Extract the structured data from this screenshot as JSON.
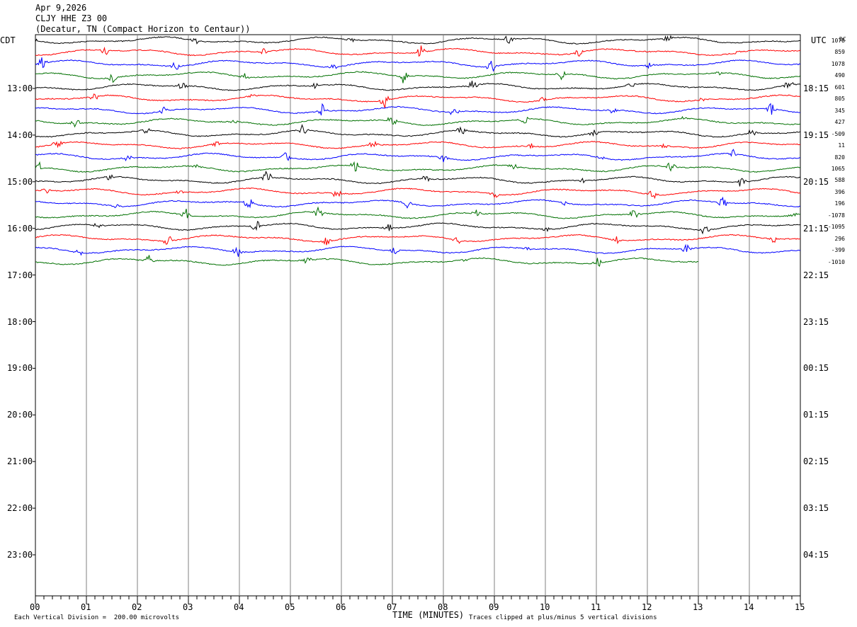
{
  "header": {
    "date": "Apr 9,2026",
    "station": "CLJY HHE Z3 00",
    "location": "(Decatur, TN (Compact Horizon to Centaur))"
  },
  "labels": {
    "left_tz": "CDT",
    "right_tz": "UTC",
    "dc_header": "DC",
    "xlabel": "TIME (MINUTES)",
    "scale_note": "Each Vertical Division =  200.00 microvolts",
    "clip_note": "Traces clipped at plus/minus 5 vertical divisions"
  },
  "chart_data": {
    "type": "line",
    "title": "CLJY HHE Z3 00",
    "xlabel": "TIME (MINUTES)",
    "xlim": [
      0,
      15
    ],
    "x_ticks": [
      "00",
      "01",
      "02",
      "03",
      "04",
      "05",
      "06",
      "07",
      "08",
      "09",
      "10",
      "11",
      "12",
      "13",
      "14",
      "15"
    ],
    "left_hour_labels": [
      "13:00",
      "14:00",
      "15:00",
      "16:00",
      "17:00",
      "18:00",
      "19:00",
      "20:00",
      "21:00",
      "22:00",
      "23:00"
    ],
    "right_hour_labels": [
      "18:15",
      "19:15",
      "20:15",
      "21:15",
      "22:15",
      "23:15",
      "00:15",
      "01:15",
      "02:15",
      "03:15",
      "04:15"
    ],
    "trace_colors": [
      "#000000",
      "#ff0000",
      "#0000ff",
      "#007000"
    ],
    "dc_offsets": [
      1078,
      859,
      1078,
      490,
      601,
      805,
      345,
      427,
      -509,
      11,
      820,
      1065,
      588,
      396,
      196,
      -1078,
      -1095,
      296,
      -399,
      -1010
    ],
    "last_trace_end_minute": 13,
    "grid": true,
    "traces_per_hour": 4,
    "minutes_per_trace": 15
  }
}
